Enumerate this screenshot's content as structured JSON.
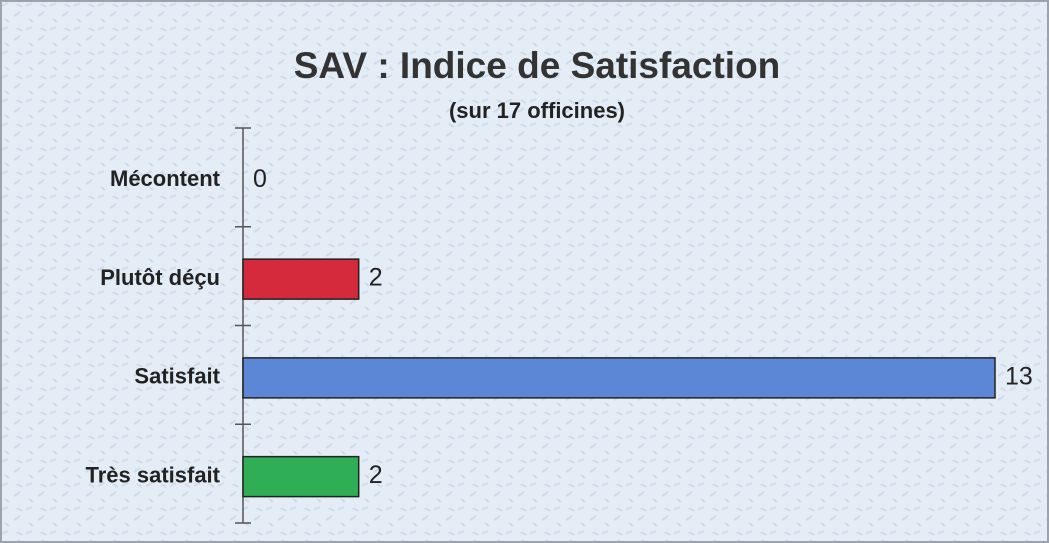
{
  "chart_data": {
    "type": "hbar",
    "title": "SAV : Indice de Satisfaction",
    "subtitle": "(sur 17 officines)",
    "categories": [
      "Mécontent",
      "Plutôt déçu",
      "Satisfait",
      "Très satisfait"
    ],
    "values": [
      0,
      2,
      13,
      2
    ],
    "colors": [
      "#8fa8d8",
      "#d42a3c",
      "#5b87d6",
      "#2fae55"
    ],
    "xlim": [
      0,
      13
    ]
  }
}
